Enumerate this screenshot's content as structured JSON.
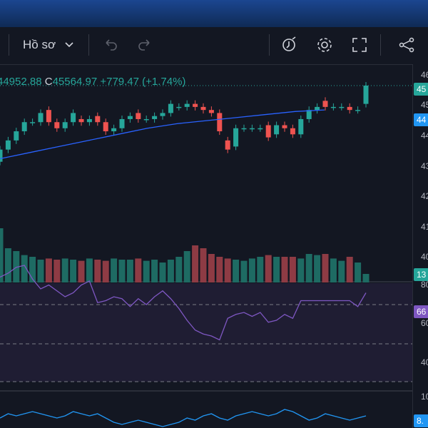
{
  "toolbar": {
    "profile_label": "Hồ sơ",
    "icons": [
      "chevron-down-icon",
      "undo-icon",
      "redo-icon",
      "alert-icon",
      "gear-icon",
      "fullscreen-icon",
      "share-icon"
    ]
  },
  "legend": {
    "low_value": "44952.88",
    "close_key": "C",
    "close_value": "45564.97",
    "change": "+779.47 (+1.74%)"
  },
  "price_axis": {
    "ticks": [
      "46",
      "45",
      "44",
      "43",
      "42",
      "41",
      "40"
    ],
    "last_price_badge": "45",
    "ma_badge": "44",
    "volume_badge": "13"
  },
  "rsi_axis": {
    "ticks": [
      "80",
      "60",
      "40"
    ],
    "badge": "66"
  },
  "osc_axis": {
    "ticks": [
      "10"
    ],
    "badge": "8."
  },
  "colors": {
    "up": "#26a69a",
    "down": "#ef5350",
    "ma": "#2962ff",
    "rsi": "#7e57c2",
    "osc": "#2196f3",
    "header_top": "#1b4690",
    "header_bottom": "#0f2a55",
    "background": "#131722"
  },
  "chart_data": {
    "type": "candlestick",
    "price_candles": [
      {
        "o": 42.9,
        "c": 43.3
      },
      {
        "o": 43.3,
        "c": 43.6
      },
      {
        "o": 43.6,
        "c": 43.9
      },
      {
        "o": 43.9,
        "c": 44.2
      },
      {
        "o": 44.2,
        "c": 44.2
      },
      {
        "o": 44.2,
        "c": 44.5
      },
      {
        "o": 44.6,
        "c": 44.2
      },
      {
        "o": 44.2,
        "c": 44.0
      },
      {
        "o": 44.0,
        "c": 44.2
      },
      {
        "o": 44.2,
        "c": 44.5
      },
      {
        "o": 44.3,
        "c": 44.2
      },
      {
        "o": 44.2,
        "c": 44.3
      },
      {
        "o": 44.4,
        "c": 44.2
      },
      {
        "o": 44.2,
        "c": 43.9
      },
      {
        "o": 43.9,
        "c": 44.0
      },
      {
        "o": 44.0,
        "c": 44.3
      },
      {
        "o": 44.3,
        "c": 44.4
      },
      {
        "o": 44.5,
        "c": 44.3
      },
      {
        "o": 44.3,
        "c": 44.3
      },
      {
        "o": 44.3,
        "c": 44.4
      },
      {
        "o": 44.4,
        "c": 44.5
      },
      {
        "o": 44.5,
        "c": 44.8
      },
      {
        "o": 44.7,
        "c": 44.7
      },
      {
        "o": 44.7,
        "c": 44.8
      },
      {
        "o": 44.8,
        "c": 44.7
      },
      {
        "o": 44.7,
        "c": 44.6
      },
      {
        "o": 44.6,
        "c": 44.5
      },
      {
        "o": 44.5,
        "c": 43.9
      },
      {
        "o": 43.6,
        "c": 43.3
      },
      {
        "o": 43.4,
        "c": 44.0
      },
      {
        "o": 44.0,
        "c": 44.0
      },
      {
        "o": 44.0,
        "c": 44.0
      },
      {
        "o": 44.0,
        "c": 44.0
      },
      {
        "o": 44.1,
        "c": 43.7
      },
      {
        "o": 43.8,
        "c": 44.1
      },
      {
        "o": 44.1,
        "c": 44.0
      },
      {
        "o": 44.0,
        "c": 43.8
      },
      {
        "o": 43.8,
        "c": 44.3
      },
      {
        "o": 44.3,
        "c": 44.6
      },
      {
        "o": 44.6,
        "c": 44.7
      },
      {
        "o": 44.9,
        "c": 44.7
      },
      {
        "o": 44.7,
        "c": 44.7
      },
      {
        "o": 44.7,
        "c": 44.7
      },
      {
        "o": 44.7,
        "c": 44.6
      },
      {
        "o": 44.6,
        "c": 44.6
      },
      {
        "o": 44.8,
        "c": 45.4
      }
    ],
    "moving_average": [
      43.0,
      43.2,
      43.4,
      43.6,
      43.8,
      44.0,
      44.15,
      44.25,
      44.35,
      44.45,
      44.55,
      44.6
    ],
    "volume_levels": [
      0.95,
      0.6,
      0.55,
      0.48,
      0.45,
      0.4,
      0.42,
      0.4,
      0.42,
      0.4,
      0.38,
      0.42,
      0.4,
      0.38,
      0.42,
      0.4,
      0.4,
      0.42,
      0.38,
      0.4,
      0.35,
      0.4,
      0.45,
      0.55,
      0.65,
      0.6,
      0.5,
      0.45,
      0.42,
      0.4,
      0.38,
      0.42,
      0.45,
      0.48,
      0.45,
      0.45,
      0.45,
      0.42,
      0.5,
      0.48,
      0.5,
      0.42,
      0.38,
      0.45,
      0.35,
      0.15
    ],
    "rsi": [
      74,
      76,
      79,
      80,
      73,
      68,
      70,
      67,
      64,
      66,
      70,
      72,
      61,
      62,
      64,
      63,
      59,
      63,
      60,
      64,
      67,
      63,
      58,
      52,
      47,
      45,
      44,
      42,
      53,
      55,
      56,
      54,
      56,
      51,
      52,
      55,
      53,
      62,
      62,
      62,
      62,
      62,
      62,
      62,
      59,
      66
    ],
    "oscillator": [
      4,
      6,
      5,
      6,
      7,
      6,
      5,
      4,
      5,
      7,
      6,
      5,
      6,
      4,
      2,
      1,
      2,
      3,
      2,
      1,
      0,
      1,
      2,
      4,
      3,
      5,
      6,
      4,
      3,
      5,
      6,
      7,
      6,
      5,
      6,
      8,
      7,
      5,
      3,
      4,
      6,
      5,
      4,
      3,
      4,
      5
    ]
  }
}
